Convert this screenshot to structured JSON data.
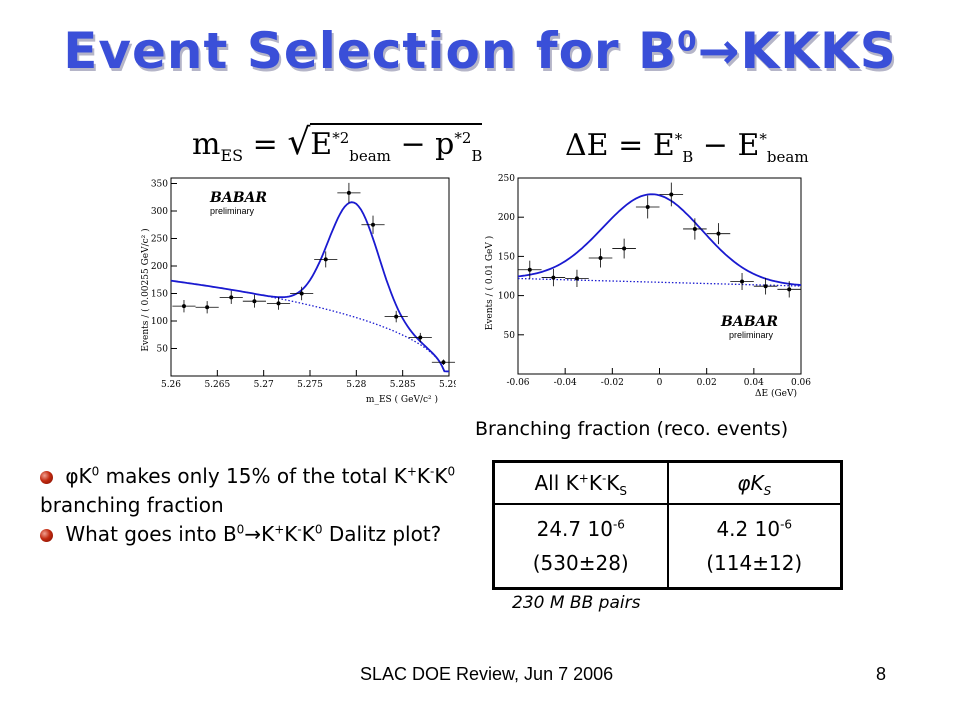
{
  "title": {
    "prefix": "Event Selection for B",
    "sup": "0",
    "arrow": "→",
    "suffix": "KKKS"
  },
  "formula_mes": {
    "lhs": "m",
    "lhs_sub": "ES",
    "eq": "=",
    "term1": "E",
    "term1_sup": "*2",
    "term1_sub": "beam",
    "minus": "−",
    "term2": "p",
    "term2_sup": "*2",
    "term2_sub": "B"
  },
  "formula_de": {
    "lhs": "ΔE",
    "eq": "=",
    "term1": "E",
    "term1_sup": "*",
    "term1_sub": "B",
    "minus": "−",
    "term2": "E",
    "term2_sup": "*",
    "term2_sub": "beam"
  },
  "plot_left": {
    "ylabel": "Events / ( 0.00255 GeV/c² )",
    "xlabel": "m_ES ( GeV/c² )",
    "yticks": [
      "50",
      "100",
      "150",
      "200",
      "250",
      "300",
      "350"
    ],
    "xticks": [
      "5.26",
      "5.265",
      "5.27",
      "5.275",
      "5.28",
      "5.285",
      "5.29"
    ],
    "logo": "BABAR",
    "logo_sub": "preliminary"
  },
  "plot_right": {
    "ylabel": "Events / ( 0.01 GeV )",
    "xlabel": "ΔE (GeV)",
    "yticks": [
      "50",
      "100",
      "150",
      "200",
      "250"
    ],
    "xticks": [
      "-0.06",
      "-0.04",
      "-0.02",
      "0",
      "0.02",
      "0.04",
      "0.06"
    ],
    "logo": "BABAR",
    "logo_sub": "preliminary"
  },
  "chart_data": [
    {
      "type": "scatter",
      "xlabel": "m_ES ( GeV/c² )",
      "ylabel": "Events / ( 0.00255 GeV/c² )",
      "xlim": [
        5.26,
        5.29
      ],
      "ylim": [
        0,
        360
      ],
      "points": {
        "x": [
          5.2614,
          5.2639,
          5.2665,
          5.269,
          5.2716,
          5.2741,
          5.2767,
          5.2792,
          5.2818,
          5.2843,
          5.2869,
          5.2894
        ],
        "y": [
          127,
          125,
          143,
          136,
          132,
          150,
          212,
          333,
          275,
          108,
          70,
          25
        ]
      },
      "curves": [
        {
          "name": "fit",
          "style": "solid"
        },
        {
          "name": "background",
          "style": "dotted"
        }
      ]
    },
    {
      "type": "scatter",
      "xlabel": "ΔE (GeV)",
      "ylabel": "Events / ( 0.01 GeV )",
      "xlim": [
        -0.06,
        0.06
      ],
      "ylim": [
        0,
        250
      ],
      "points": {
        "x": [
          -0.055,
          -0.045,
          -0.035,
          -0.025,
          -0.015,
          -0.005,
          0.005,
          0.015,
          0.025,
          0.035,
          0.045,
          0.055
        ],
        "y": [
          133,
          123,
          122,
          148,
          160,
          213,
          229,
          185,
          179,
          118,
          112,
          108
        ]
      },
      "curves": [
        {
          "name": "fit",
          "style": "solid"
        },
        {
          "name": "background",
          "style": "dotted"
        }
      ]
    }
  ],
  "bf_label": "Branching fraction (reco. events)",
  "table": {
    "h1": {
      "a": "All K",
      "b": "+",
      "c": "K",
      "d": "-",
      "e": "K",
      "f": "S"
    },
    "h2": {
      "phi": "φ",
      "k": "K",
      "s": "S"
    },
    "c1": {
      "v": "24.7 10",
      "e": "-6",
      "n": "(530±28)"
    },
    "c2": {
      "v": "4.2 10",
      "e": "-6",
      "n": "(114±12)"
    }
  },
  "bullets": {
    "b1a": " φK",
    "b1b": "0",
    "b1c": " makes only 15% of the total K",
    "b1d": "+",
    "b1e": "K",
    "b1f": "-",
    "b1g": "K",
    "b1h": "0",
    "b1i": " branching fraction",
    "b2a": " What goes into  B",
    "b2b": "0",
    "b2c": "→",
    "b2d": "K",
    "b2e": "+",
    "b2f": "K",
    "b2g": "-",
    "b2h": "K",
    "b2i": "0",
    "b2j": " Dalitz plot?"
  },
  "note": "230 M BB pairs",
  "footer": "SLAC DOE Review, Jun 7 2006",
  "page_number": "8",
  "colors": {
    "title": "#3a4fd8",
    "fit": "#1a1ad0"
  }
}
